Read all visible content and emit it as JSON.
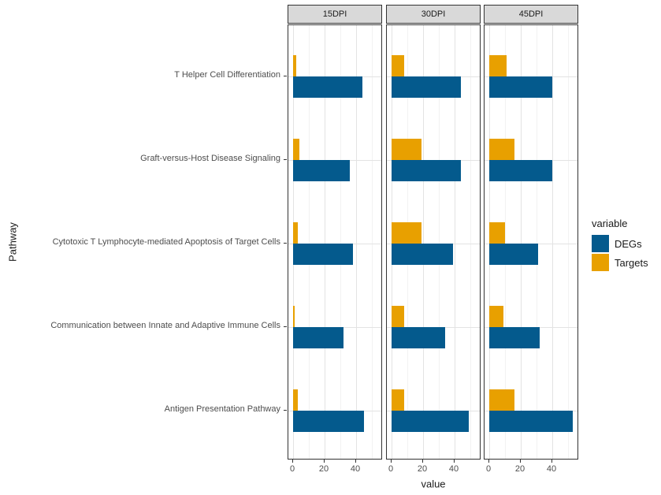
{
  "chart_data": {
    "type": "bar",
    "orientation": "horizontal",
    "xlabel": "value",
    "ylabel": "Pathway",
    "xlim": [
      0,
      57
    ],
    "xticks": [
      0,
      20,
      40
    ],
    "minor_gridlines": [
      10,
      30,
      50
    ],
    "grid": true,
    "categories_top_to_bottom": [
      "T Helper Cell Differentiation",
      "Graft-versus-Host Disease Signaling",
      "Cytotoxic T Lymphocyte-mediated Apoptosis of Target Cells",
      "Communication between Innate and Adaptive Immune Cells",
      "Antigen Presentation Pathway"
    ],
    "facets": [
      {
        "label": "15DPI",
        "series": [
          {
            "name": "DEGs",
            "values": [
              44,
              36,
              38,
              32,
              45
            ]
          },
          {
            "name": "Targets",
            "values": [
              2,
              4,
              3,
              1,
              3
            ]
          }
        ]
      },
      {
        "label": "30DPI",
        "series": [
          {
            "name": "DEGs",
            "values": [
              44,
              44,
              39,
              34,
              49
            ]
          },
          {
            "name": "Targets",
            "values": [
              8,
              19,
              19,
              8,
              8
            ]
          }
        ]
      },
      {
        "label": "45DPI",
        "series": [
          {
            "name": "DEGs",
            "values": [
              40,
              40,
              31,
              32,
              53
            ]
          },
          {
            "name": "Targets",
            "values": [
              11,
              16,
              10,
              9,
              16
            ]
          }
        ]
      }
    ],
    "legend": {
      "title": "variable",
      "position": "right",
      "entries": [
        {
          "label": "DEGs",
          "color": "#045A8D"
        },
        {
          "label": "Targets",
          "color": "#E8A000"
        }
      ]
    }
  },
  "colors": {
    "bar_degs": "#045A8D",
    "bar_targets": "#E8A000",
    "strip_bg": "#D9D9D9",
    "panel_border": "#333333",
    "grid_major": "#E3E3E3",
    "grid_minor": "#F2F2F2",
    "tick_text": "#4D4D4D",
    "axis_title_text": "#1A1A1A"
  }
}
